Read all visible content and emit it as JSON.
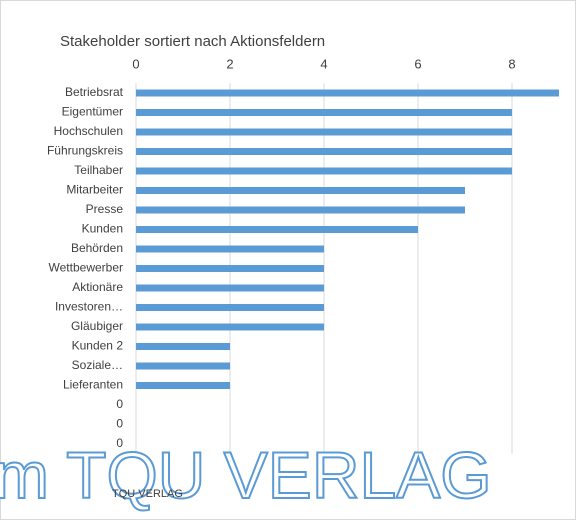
{
  "chart_data": {
    "type": "bar",
    "orientation": "horizontal",
    "title": "Stakeholder sortiert nach Aktionsfeldern",
    "categories": [
      "Betriebsrat",
      "Eigentümer",
      "Hochschulen",
      "Führungskreis",
      "Teilhaber",
      "Mitarbeiter",
      "Presse",
      "Kunden",
      "Behörden",
      "Wettbewerber",
      "Aktionäre",
      "Investoren…",
      "Gläubiger",
      "Kunden 2",
      "Soziale…",
      "Lieferanten",
      "0",
      "0",
      "0"
    ],
    "values": [
      9,
      8,
      8,
      8,
      8,
      7,
      7,
      6,
      4,
      4,
      4,
      4,
      4,
      2,
      2,
      2,
      null,
      null,
      null
    ],
    "color": "#5b9bd5",
    "xlim": [
      0,
      9
    ],
    "xticks": [
      0,
      2,
      4,
      6,
      8
    ],
    "grid": true
  },
  "watermark": {
    "large": "m TQU VERLAG",
    "small": "TQU VERLAG"
  }
}
